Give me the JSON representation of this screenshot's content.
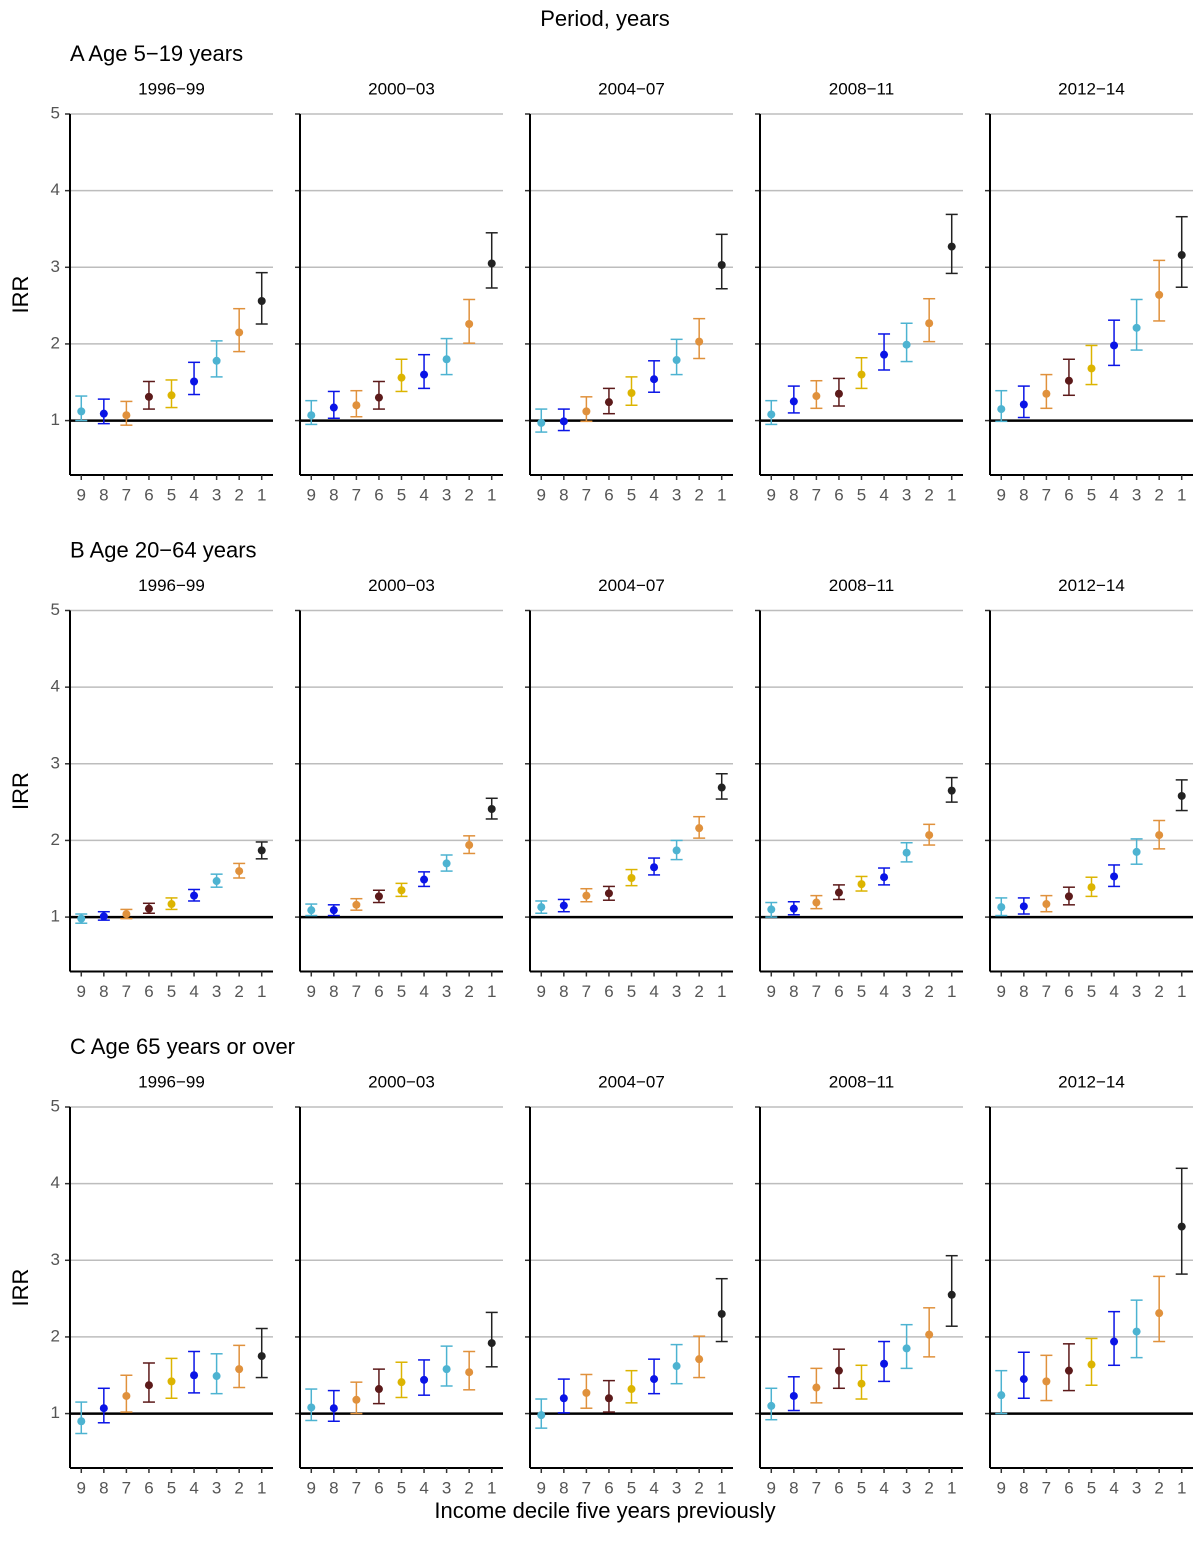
{
  "title": "Period, years",
  "xlabel": "Income decile five years previously",
  "chart_data": [
    {
      "type": "errorbar",
      "title": "A Age 5−19 years",
      "ylabel": "IRR",
      "ylim": [
        0.29,
        5
      ],
      "yticks": [
        1,
        2,
        3,
        4,
        5
      ],
      "grid": true,
      "reference_line": 1,
      "categories": [
        "9",
        "8",
        "7",
        "6",
        "5",
        "4",
        "3",
        "2",
        "1"
      ],
      "colors": [
        "#4db3d1",
        "#0a14e6",
        "#e0913c",
        "#5c1a1a",
        "#dcb400",
        "#0a14e6",
        "#4db3d1",
        "#e0913c",
        "#222222"
      ],
      "panels": [
        {
          "title": "1996−99",
          "values": [
            1.12,
            1.09,
            1.07,
            1.31,
            1.33,
            1.51,
            1.78,
            2.15,
            2.56
          ],
          "lower": [
            1.0,
            0.96,
            0.94,
            1.15,
            1.17,
            1.34,
            1.57,
            1.9,
            2.26
          ],
          "upper": [
            1.32,
            1.28,
            1.25,
            1.51,
            1.53,
            1.76,
            2.04,
            2.46,
            2.93
          ]
        },
        {
          "title": "2000−03",
          "values": [
            1.07,
            1.17,
            1.2,
            1.3,
            1.56,
            1.6,
            1.8,
            2.26,
            3.05
          ],
          "lower": [
            0.95,
            1.03,
            1.05,
            1.15,
            1.38,
            1.42,
            1.6,
            2.01,
            2.73
          ],
          "upper": [
            1.26,
            1.38,
            1.39,
            1.51,
            1.8,
            1.86,
            2.07,
            2.58,
            3.45
          ]
        },
        {
          "title": "2004−07",
          "values": [
            0.97,
            0.99,
            1.12,
            1.24,
            1.36,
            1.54,
            1.79,
            2.03,
            3.03
          ],
          "lower": [
            0.85,
            0.87,
            0.99,
            1.09,
            1.2,
            1.37,
            1.6,
            1.81,
            2.72
          ],
          "upper": [
            1.15,
            1.15,
            1.31,
            1.42,
            1.57,
            1.78,
            2.06,
            2.33,
            3.43
          ]
        },
        {
          "title": "2008−11",
          "values": [
            1.08,
            1.25,
            1.32,
            1.35,
            1.6,
            1.86,
            1.99,
            2.27,
            3.27
          ],
          "lower": [
            0.95,
            1.1,
            1.16,
            1.19,
            1.42,
            1.66,
            1.77,
            2.03,
            2.92
          ],
          "upper": [
            1.26,
            1.45,
            1.52,
            1.55,
            1.82,
            2.13,
            2.27,
            2.59,
            3.69
          ]
        },
        {
          "title": "2012−14",
          "values": [
            1.15,
            1.21,
            1.35,
            1.52,
            1.68,
            1.98,
            2.21,
            2.64,
            3.16
          ],
          "lower": [
            0.99,
            1.04,
            1.16,
            1.33,
            1.47,
            1.72,
            1.92,
            2.3,
            2.74
          ],
          "upper": [
            1.39,
            1.45,
            1.6,
            1.8,
            1.98,
            2.31,
            2.58,
            3.09,
            3.66
          ]
        }
      ]
    },
    {
      "type": "errorbar",
      "title": "B Age 20−64 years",
      "ylabel": "IRR",
      "ylim": [
        0.29,
        5
      ],
      "yticks": [
        1,
        2,
        3,
        4,
        5
      ],
      "grid": true,
      "reference_line": 1,
      "categories": [
        "9",
        "8",
        "7",
        "6",
        "5",
        "4",
        "3",
        "2",
        "1"
      ],
      "colors": [
        "#4db3d1",
        "#0a14e6",
        "#e0913c",
        "#5c1a1a",
        "#dcb400",
        "#0a14e6",
        "#4db3d1",
        "#e0913c",
        "#222222"
      ],
      "panels": [
        {
          "title": "1996−99",
          "values": [
            0.98,
            1.01,
            1.04,
            1.11,
            1.17,
            1.28,
            1.47,
            1.6,
            1.87
          ],
          "lower": [
            0.92,
            0.96,
            0.98,
            1.05,
            1.1,
            1.21,
            1.39,
            1.51,
            1.76
          ],
          "upper": [
            1.04,
            1.07,
            1.1,
            1.18,
            1.25,
            1.36,
            1.56,
            1.7,
            1.98
          ]
        },
        {
          "title": "2000−03",
          "values": [
            1.09,
            1.09,
            1.16,
            1.27,
            1.35,
            1.49,
            1.7,
            1.94,
            2.41
          ],
          "lower": [
            1.02,
            1.02,
            1.09,
            1.19,
            1.27,
            1.4,
            1.6,
            1.83,
            2.28
          ],
          "upper": [
            1.17,
            1.16,
            1.24,
            1.35,
            1.44,
            1.59,
            1.81,
            2.06,
            2.55
          ]
        },
        {
          "title": "2004−07",
          "values": [
            1.13,
            1.15,
            1.28,
            1.31,
            1.51,
            1.65,
            1.87,
            2.16,
            2.69
          ],
          "lower": [
            1.05,
            1.07,
            1.2,
            1.22,
            1.41,
            1.55,
            1.75,
            2.03,
            2.54
          ],
          "upper": [
            1.21,
            1.23,
            1.37,
            1.4,
            1.62,
            1.77,
            2.0,
            2.31,
            2.87
          ]
        },
        {
          "title": "2008−11",
          "values": [
            1.1,
            1.11,
            1.19,
            1.32,
            1.43,
            1.52,
            1.84,
            2.07,
            2.65
          ],
          "lower": [
            1.0,
            1.03,
            1.11,
            1.23,
            1.34,
            1.42,
            1.72,
            1.94,
            2.5
          ],
          "upper": [
            1.19,
            1.2,
            1.28,
            1.42,
            1.53,
            1.64,
            1.97,
            2.21,
            2.82
          ]
        },
        {
          "title": "2012−14",
          "values": [
            1.13,
            1.14,
            1.17,
            1.27,
            1.39,
            1.53,
            1.85,
            2.07,
            2.58
          ],
          "lower": [
            1.02,
            1.04,
            1.07,
            1.16,
            1.27,
            1.4,
            1.69,
            1.89,
            2.39
          ],
          "upper": [
            1.25,
            1.25,
            1.28,
            1.39,
            1.52,
            1.68,
            2.02,
            2.26,
            2.79
          ]
        }
      ]
    },
    {
      "type": "errorbar",
      "title": "C Age 65 years or over",
      "ylabel": "IRR",
      "ylim": [
        0.29,
        5
      ],
      "yticks": [
        1,
        2,
        3,
        4,
        5
      ],
      "grid": true,
      "reference_line": 1,
      "categories": [
        "9",
        "8",
        "7",
        "6",
        "5",
        "4",
        "3",
        "2",
        "1"
      ],
      "colors": [
        "#4db3d1",
        "#0a14e6",
        "#e0913c",
        "#5c1a1a",
        "#dcb400",
        "#0a14e6",
        "#4db3d1",
        "#e0913c",
        "#222222"
      ],
      "panels": [
        {
          "title": "1996−99",
          "values": [
            0.9,
            1.07,
            1.23,
            1.37,
            1.42,
            1.5,
            1.49,
            1.58,
            1.75
          ],
          "lower": [
            0.74,
            0.88,
            1.02,
            1.15,
            1.2,
            1.27,
            1.26,
            1.34,
            1.47
          ],
          "upper": [
            1.15,
            1.33,
            1.5,
            1.66,
            1.72,
            1.81,
            1.78,
            1.89,
            2.11
          ]
        },
        {
          "title": "2000−03",
          "values": [
            1.08,
            1.07,
            1.18,
            1.32,
            1.41,
            1.44,
            1.58,
            1.54,
            1.92
          ],
          "lower": [
            0.91,
            0.9,
            1.0,
            1.13,
            1.21,
            1.24,
            1.36,
            1.31,
            1.61
          ],
          "upper": [
            1.32,
            1.3,
            1.41,
            1.58,
            1.67,
            1.7,
            1.88,
            1.81,
            2.32
          ]
        },
        {
          "title": "2004−07",
          "values": [
            0.98,
            1.2,
            1.27,
            1.2,
            1.32,
            1.45,
            1.62,
            1.71,
            2.3
          ],
          "lower": [
            0.81,
            1.01,
            1.07,
            1.02,
            1.14,
            1.26,
            1.39,
            1.47,
            1.94
          ],
          "upper": [
            1.19,
            1.45,
            1.51,
            1.43,
            1.56,
            1.71,
            1.9,
            2.01,
            2.76
          ]
        },
        {
          "title": "2008−11",
          "values": [
            1.1,
            1.23,
            1.34,
            1.56,
            1.39,
            1.65,
            1.85,
            2.03,
            2.55
          ],
          "lower": [
            0.92,
            1.04,
            1.14,
            1.33,
            1.19,
            1.42,
            1.59,
            1.74,
            2.14
          ],
          "upper": [
            1.33,
            1.48,
            1.59,
            1.84,
            1.63,
            1.94,
            2.16,
            2.38,
            3.06
          ]
        },
        {
          "title": "2012−14",
          "values": [
            1.24,
            1.45,
            1.42,
            1.56,
            1.64,
            1.94,
            2.07,
            2.31,
            3.44
          ],
          "lower": [
            1.0,
            1.2,
            1.17,
            1.3,
            1.37,
            1.63,
            1.73,
            1.94,
            2.82
          ],
          "upper": [
            1.56,
            1.8,
            1.76,
            1.91,
            1.98,
            2.33,
            2.48,
            2.79,
            4.2
          ]
        }
      ]
    }
  ]
}
